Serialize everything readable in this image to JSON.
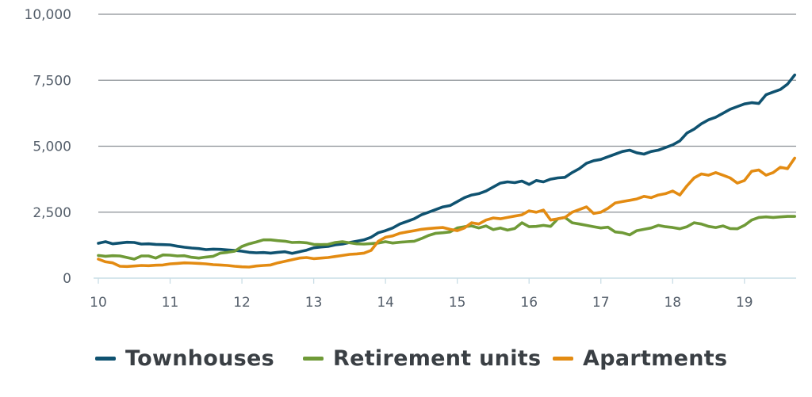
{
  "chart_data": {
    "type": "line",
    "title": "",
    "xlabel": "",
    "ylabel": "",
    "xlim": [
      10,
      19.72
    ],
    "ylim": [
      0,
      10000
    ],
    "x_ticks": [
      10,
      11,
      12,
      13,
      14,
      15,
      16,
      17,
      18,
      19
    ],
    "x_tick_labels": [
      "10",
      "11",
      "12",
      "13",
      "14",
      "15",
      "16",
      "17",
      "18",
      "19"
    ],
    "y_ticks": [
      0,
      2500,
      5000,
      7500,
      10000
    ],
    "y_tick_labels": [
      "0",
      "2,500",
      "5,000",
      "7,500",
      "10,000"
    ],
    "grid": "horizontal",
    "legend_position": "bottom",
    "series": [
      {
        "name": "Townhouses",
        "color": "#0f5270",
        "points": [
          [
            10.0,
            1320
          ],
          [
            10.1,
            1380
          ],
          [
            10.2,
            1300
          ],
          [
            10.3,
            1330
          ],
          [
            10.4,
            1360
          ],
          [
            10.5,
            1350
          ],
          [
            10.6,
            1290
          ],
          [
            10.7,
            1300
          ],
          [
            10.8,
            1280
          ],
          [
            10.9,
            1270
          ],
          [
            11.0,
            1260
          ],
          [
            11.1,
            1210
          ],
          [
            11.2,
            1170
          ],
          [
            11.3,
            1140
          ],
          [
            11.4,
            1120
          ],
          [
            11.5,
            1080
          ],
          [
            11.6,
            1100
          ],
          [
            11.7,
            1090
          ],
          [
            11.8,
            1070
          ],
          [
            11.9,
            1050
          ],
          [
            12.0,
            1020
          ],
          [
            12.1,
            980
          ],
          [
            12.2,
            960
          ],
          [
            12.3,
            970
          ],
          [
            12.4,
            950
          ],
          [
            12.5,
            980
          ],
          [
            12.6,
            1000
          ],
          [
            12.7,
            940
          ],
          [
            12.8,
            1000
          ],
          [
            12.9,
            1060
          ],
          [
            13.0,
            1150
          ],
          [
            13.1,
            1180
          ],
          [
            13.2,
            1200
          ],
          [
            13.3,
            1260
          ],
          [
            13.4,
            1290
          ],
          [
            13.5,
            1350
          ],
          [
            13.6,
            1400
          ],
          [
            13.7,
            1450
          ],
          [
            13.8,
            1550
          ],
          [
            13.9,
            1720
          ],
          [
            14.0,
            1800
          ],
          [
            14.1,
            1900
          ],
          [
            14.2,
            2050
          ],
          [
            14.3,
            2150
          ],
          [
            14.4,
            2250
          ],
          [
            14.5,
            2400
          ],
          [
            14.6,
            2500
          ],
          [
            14.7,
            2600
          ],
          [
            14.8,
            2700
          ],
          [
            14.9,
            2750
          ],
          [
            15.0,
            2900
          ],
          [
            15.1,
            3050
          ],
          [
            15.2,
            3150
          ],
          [
            15.3,
            3200
          ],
          [
            15.4,
            3300
          ],
          [
            15.5,
            3450
          ],
          [
            15.6,
            3600
          ],
          [
            15.7,
            3650
          ],
          [
            15.8,
            3620
          ],
          [
            15.9,
            3680
          ],
          [
            16.0,
            3550
          ],
          [
            16.1,
            3700
          ],
          [
            16.2,
            3650
          ],
          [
            16.3,
            3750
          ],
          [
            16.4,
            3800
          ],
          [
            16.5,
            3820
          ],
          [
            16.6,
            4000
          ],
          [
            16.7,
            4150
          ],
          [
            16.8,
            4350
          ],
          [
            16.9,
            4450
          ],
          [
            17.0,
            4500
          ],
          [
            17.1,
            4600
          ],
          [
            17.2,
            4700
          ],
          [
            17.3,
            4800
          ],
          [
            17.4,
            4850
          ],
          [
            17.5,
            4750
          ],
          [
            17.6,
            4700
          ],
          [
            17.7,
            4800
          ],
          [
            17.8,
            4850
          ],
          [
            17.9,
            4950
          ],
          [
            18.0,
            5050
          ],
          [
            18.1,
            5200
          ],
          [
            18.2,
            5500
          ],
          [
            18.3,
            5650
          ],
          [
            18.4,
            5850
          ],
          [
            18.5,
            6000
          ],
          [
            18.6,
            6100
          ],
          [
            18.7,
            6250
          ],
          [
            18.8,
            6400
          ],
          [
            18.9,
            6500
          ],
          [
            19.0,
            6600
          ],
          [
            19.1,
            6650
          ],
          [
            19.2,
            6620
          ],
          [
            19.3,
            6950
          ],
          [
            19.4,
            7050
          ],
          [
            19.5,
            7150
          ],
          [
            19.6,
            7350
          ],
          [
            19.7,
            7700
          ]
        ]
      },
      {
        "name": "Retirement units",
        "color": "#6f9a37",
        "points": [
          [
            10.0,
            860
          ],
          [
            10.1,
            830
          ],
          [
            10.2,
            850
          ],
          [
            10.3,
            840
          ],
          [
            10.4,
            780
          ],
          [
            10.5,
            720
          ],
          [
            10.6,
            840
          ],
          [
            10.7,
            840
          ],
          [
            10.8,
            760
          ],
          [
            10.9,
            880
          ],
          [
            11.0,
            870
          ],
          [
            11.1,
            840
          ],
          [
            11.2,
            850
          ],
          [
            11.3,
            790
          ],
          [
            11.4,
            760
          ],
          [
            11.5,
            800
          ],
          [
            11.6,
            830
          ],
          [
            11.7,
            950
          ],
          [
            11.8,
            980
          ],
          [
            11.9,
            1020
          ],
          [
            12.0,
            1200
          ],
          [
            12.1,
            1300
          ],
          [
            12.2,
            1370
          ],
          [
            12.3,
            1450
          ],
          [
            12.4,
            1450
          ],
          [
            12.5,
            1420
          ],
          [
            12.6,
            1400
          ],
          [
            12.7,
            1350
          ],
          [
            12.8,
            1360
          ],
          [
            12.9,
            1340
          ],
          [
            13.0,
            1280
          ],
          [
            13.1,
            1270
          ],
          [
            13.2,
            1280
          ],
          [
            13.3,
            1350
          ],
          [
            13.4,
            1380
          ],
          [
            13.5,
            1340
          ],
          [
            13.6,
            1300
          ],
          [
            13.7,
            1290
          ],
          [
            13.8,
            1310
          ],
          [
            13.9,
            1330
          ],
          [
            14.0,
            1380
          ],
          [
            14.1,
            1330
          ],
          [
            14.2,
            1360
          ],
          [
            14.3,
            1380
          ],
          [
            14.4,
            1400
          ],
          [
            14.5,
            1500
          ],
          [
            14.6,
            1620
          ],
          [
            14.7,
            1700
          ],
          [
            14.8,
            1720
          ],
          [
            14.9,
            1750
          ],
          [
            15.0,
            1900
          ],
          [
            15.1,
            1950
          ],
          [
            15.2,
            1980
          ],
          [
            15.3,
            1900
          ],
          [
            15.4,
            1980
          ],
          [
            15.5,
            1840
          ],
          [
            15.6,
            1900
          ],
          [
            15.7,
            1820
          ],
          [
            15.8,
            1880
          ],
          [
            15.9,
            2100
          ],
          [
            16.0,
            1950
          ],
          [
            16.1,
            1960
          ],
          [
            16.2,
            2000
          ],
          [
            16.3,
            1960
          ],
          [
            16.4,
            2250
          ],
          [
            16.5,
            2300
          ],
          [
            16.6,
            2100
          ],
          [
            16.7,
            2050
          ],
          [
            16.8,
            2000
          ],
          [
            16.9,
            1950
          ],
          [
            17.0,
            1900
          ],
          [
            17.1,
            1930
          ],
          [
            17.2,
            1750
          ],
          [
            17.3,
            1720
          ],
          [
            17.4,
            1640
          ],
          [
            17.5,
            1800
          ],
          [
            17.6,
            1850
          ],
          [
            17.7,
            1900
          ],
          [
            17.8,
            2000
          ],
          [
            17.9,
            1950
          ],
          [
            18.0,
            1920
          ],
          [
            18.1,
            1870
          ],
          [
            18.2,
            1950
          ],
          [
            18.3,
            2100
          ],
          [
            18.4,
            2050
          ],
          [
            18.5,
            1960
          ],
          [
            18.6,
            1920
          ],
          [
            18.7,
            1980
          ],
          [
            18.8,
            1880
          ],
          [
            18.9,
            1870
          ],
          [
            19.0,
            2000
          ],
          [
            19.1,
            2200
          ],
          [
            19.2,
            2300
          ],
          [
            19.3,
            2320
          ],
          [
            19.4,
            2300
          ],
          [
            19.5,
            2320
          ],
          [
            19.6,
            2340
          ],
          [
            19.7,
            2340
          ]
        ]
      },
      {
        "name": "Apartments",
        "color": "#e38b12",
        "points": [
          [
            10.0,
            720
          ],
          [
            10.1,
            620
          ],
          [
            10.2,
            580
          ],
          [
            10.3,
            450
          ],
          [
            10.4,
            440
          ],
          [
            10.5,
            460
          ],
          [
            10.6,
            480
          ],
          [
            10.7,
            470
          ],
          [
            10.8,
            490
          ],
          [
            10.9,
            500
          ],
          [
            11.0,
            540
          ],
          [
            11.1,
            560
          ],
          [
            11.2,
            580
          ],
          [
            11.3,
            570
          ],
          [
            11.4,
            560
          ],
          [
            11.5,
            540
          ],
          [
            11.6,
            510
          ],
          [
            11.7,
            500
          ],
          [
            11.8,
            480
          ],
          [
            11.9,
            450
          ],
          [
            12.0,
            430
          ],
          [
            12.1,
            420
          ],
          [
            12.2,
            460
          ],
          [
            12.3,
            480
          ],
          [
            12.4,
            500
          ],
          [
            12.5,
            580
          ],
          [
            12.6,
            640
          ],
          [
            12.7,
            700
          ],
          [
            12.8,
            760
          ],
          [
            12.9,
            780
          ],
          [
            13.0,
            740
          ],
          [
            13.1,
            760
          ],
          [
            13.2,
            780
          ],
          [
            13.3,
            820
          ],
          [
            13.4,
            860
          ],
          [
            13.5,
            900
          ],
          [
            13.6,
            920
          ],
          [
            13.7,
            950
          ],
          [
            13.8,
            1050
          ],
          [
            13.9,
            1400
          ],
          [
            14.0,
            1550
          ],
          [
            14.1,
            1600
          ],
          [
            14.2,
            1700
          ],
          [
            14.3,
            1750
          ],
          [
            14.4,
            1800
          ],
          [
            14.5,
            1850
          ],
          [
            14.6,
            1880
          ],
          [
            14.7,
            1900
          ],
          [
            14.8,
            1920
          ],
          [
            14.9,
            1850
          ],
          [
            15.0,
            1800
          ],
          [
            15.1,
            1900
          ],
          [
            15.2,
            2100
          ],
          [
            15.3,
            2050
          ],
          [
            15.4,
            2200
          ],
          [
            15.5,
            2280
          ],
          [
            15.6,
            2250
          ],
          [
            15.7,
            2300
          ],
          [
            15.8,
            2350
          ],
          [
            15.9,
            2400
          ],
          [
            16.0,
            2550
          ],
          [
            16.1,
            2500
          ],
          [
            16.2,
            2580
          ],
          [
            16.3,
            2200
          ],
          [
            16.4,
            2250
          ],
          [
            16.5,
            2300
          ],
          [
            16.6,
            2500
          ],
          [
            16.7,
            2600
          ],
          [
            16.8,
            2700
          ],
          [
            16.9,
            2450
          ],
          [
            17.0,
            2500
          ],
          [
            17.1,
            2650
          ],
          [
            17.2,
            2850
          ],
          [
            17.3,
            2900
          ],
          [
            17.4,
            2950
          ],
          [
            17.5,
            3000
          ],
          [
            17.6,
            3100
          ],
          [
            17.7,
            3050
          ],
          [
            17.8,
            3150
          ],
          [
            17.9,
            3200
          ],
          [
            18.0,
            3300
          ],
          [
            18.1,
            3150
          ],
          [
            18.2,
            3500
          ],
          [
            18.3,
            3800
          ],
          [
            18.4,
            3950
          ],
          [
            18.5,
            3900
          ],
          [
            18.6,
            4000
          ],
          [
            18.7,
            3900
          ],
          [
            18.8,
            3800
          ],
          [
            18.9,
            3600
          ],
          [
            19.0,
            3700
          ],
          [
            19.1,
            4050
          ],
          [
            19.2,
            4100
          ],
          [
            19.3,
            3900
          ],
          [
            19.4,
            4000
          ],
          [
            19.5,
            4200
          ],
          [
            19.6,
            4150
          ],
          [
            19.7,
            4550
          ]
        ]
      }
    ]
  }
}
